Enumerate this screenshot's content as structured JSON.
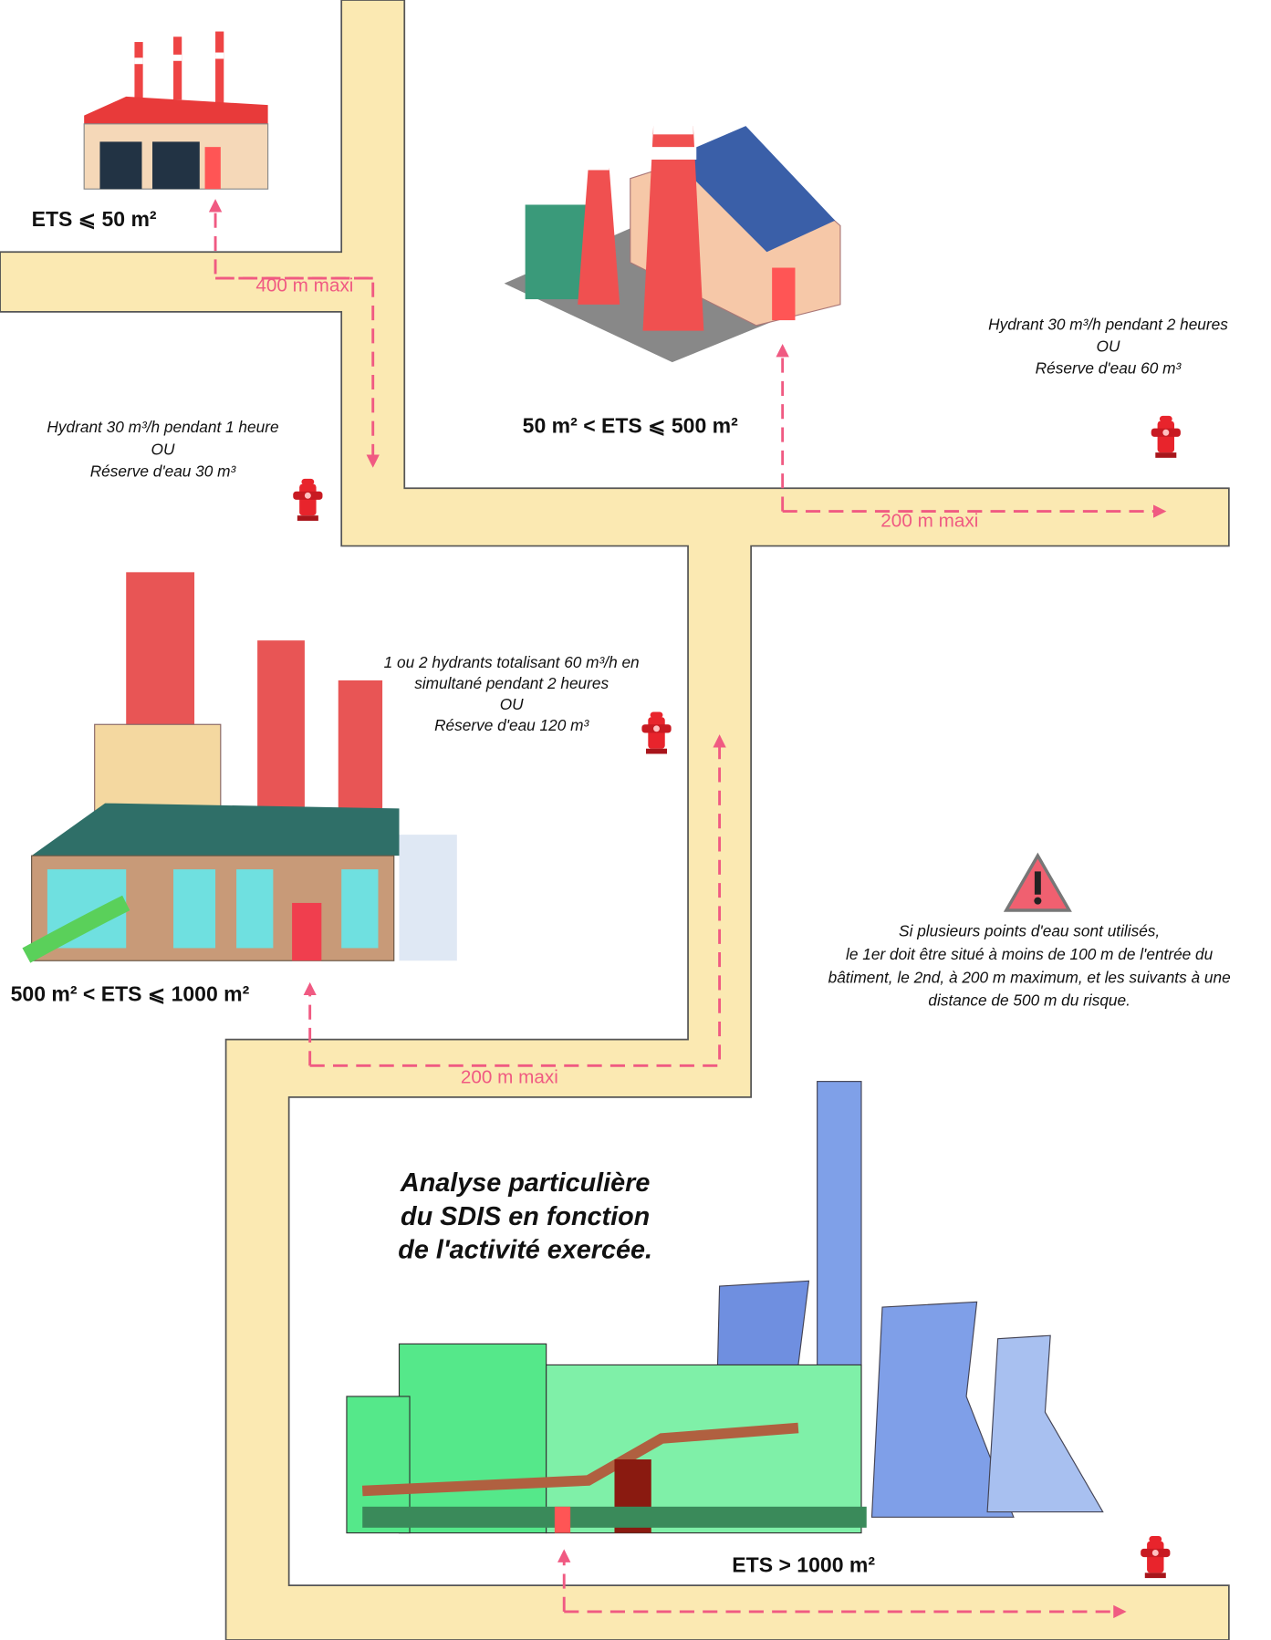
{
  "levels": [
    {
      "label": "ETS ⩽  50 m²",
      "requirement": [
        "Hydrant 30 m³/h pendant 1 heure",
        "OU",
        "Réserve d'eau 30 m³"
      ],
      "distance": "400 m maxi"
    },
    {
      "label": "50 m² < ETS ⩽  500 m²",
      "requirement": [
        "Hydrant 30 m³/h pendant 2 heures",
        "OU",
        "Réserve d'eau 60 m³"
      ],
      "distance": "200 m maxi"
    },
    {
      "label": "500 m² < ETS ⩽  1000 m²",
      "requirement": [
        "1 ou 2 hydrants totalisant 60 m³/h en",
        "simultané pendant 2 heures",
        "OU",
        "Réserve d'eau 120 m³"
      ],
      "distance": "200 m maxi"
    },
    {
      "label": "ETS >  1000 m²",
      "requirement": [
        "Analyse particulière",
        "du SDIS en fonction",
        "de l'activité exercée."
      ]
    }
  ],
  "warning": [
    "Si plusieurs points d'eau sont utilisés,",
    "le 1er doit être situé à moins de 100 m de l'entrée du",
    "bâtiment, le 2nd, à 200 m maximum, et les suivants à une",
    "distance de 500 m du risque."
  ]
}
